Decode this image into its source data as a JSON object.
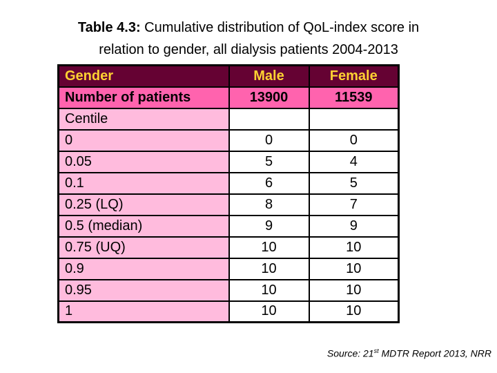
{
  "slide": {
    "title": {
      "bold": "Table 4.3:",
      "line1_rest": " Cumulative distribution of QoL-index score in",
      "line2": "relation to gender, all dialysis patients 2004-2013"
    },
    "source": {
      "prefix": "Source: 21",
      "superscript": "st",
      "rest": " MDTR Report 2013, NRR"
    }
  },
  "table": {
    "header_row": {
      "label": "Gender",
      "male": "Male",
      "female": "Female"
    },
    "patients_row": {
      "label": "Number of patients",
      "male": "13900",
      "female": "11539"
    },
    "centile_label": "Centile",
    "centile_rows": [
      {
        "label": "0",
        "male": "0",
        "female": "0"
      },
      {
        "label": "0.05",
        "male": "5",
        "female": "4"
      },
      {
        "label": "0.1",
        "male": "6",
        "female": "5"
      },
      {
        "label": "0.25 (LQ)",
        "male": "8",
        "female": "7"
      },
      {
        "label": "0.5 (median)",
        "male": "9",
        "female": "9"
      },
      {
        "label": "0.75 (UQ)",
        "male": "10",
        "female": "10"
      },
      {
        "label": "0.9",
        "male": "10",
        "female": "10"
      },
      {
        "label": "0.95",
        "male": "10",
        "female": "10"
      },
      {
        "label": "1",
        "male": "10",
        "female": "10"
      }
    ]
  },
  "colors": {
    "header_bg": "#650233",
    "header_text": "#FFD232",
    "patients_bg": "#FF63AE",
    "label_bg": "#FFBBDD",
    "border": "#000000",
    "background": "#FFFFFF",
    "text": "#000000"
  }
}
